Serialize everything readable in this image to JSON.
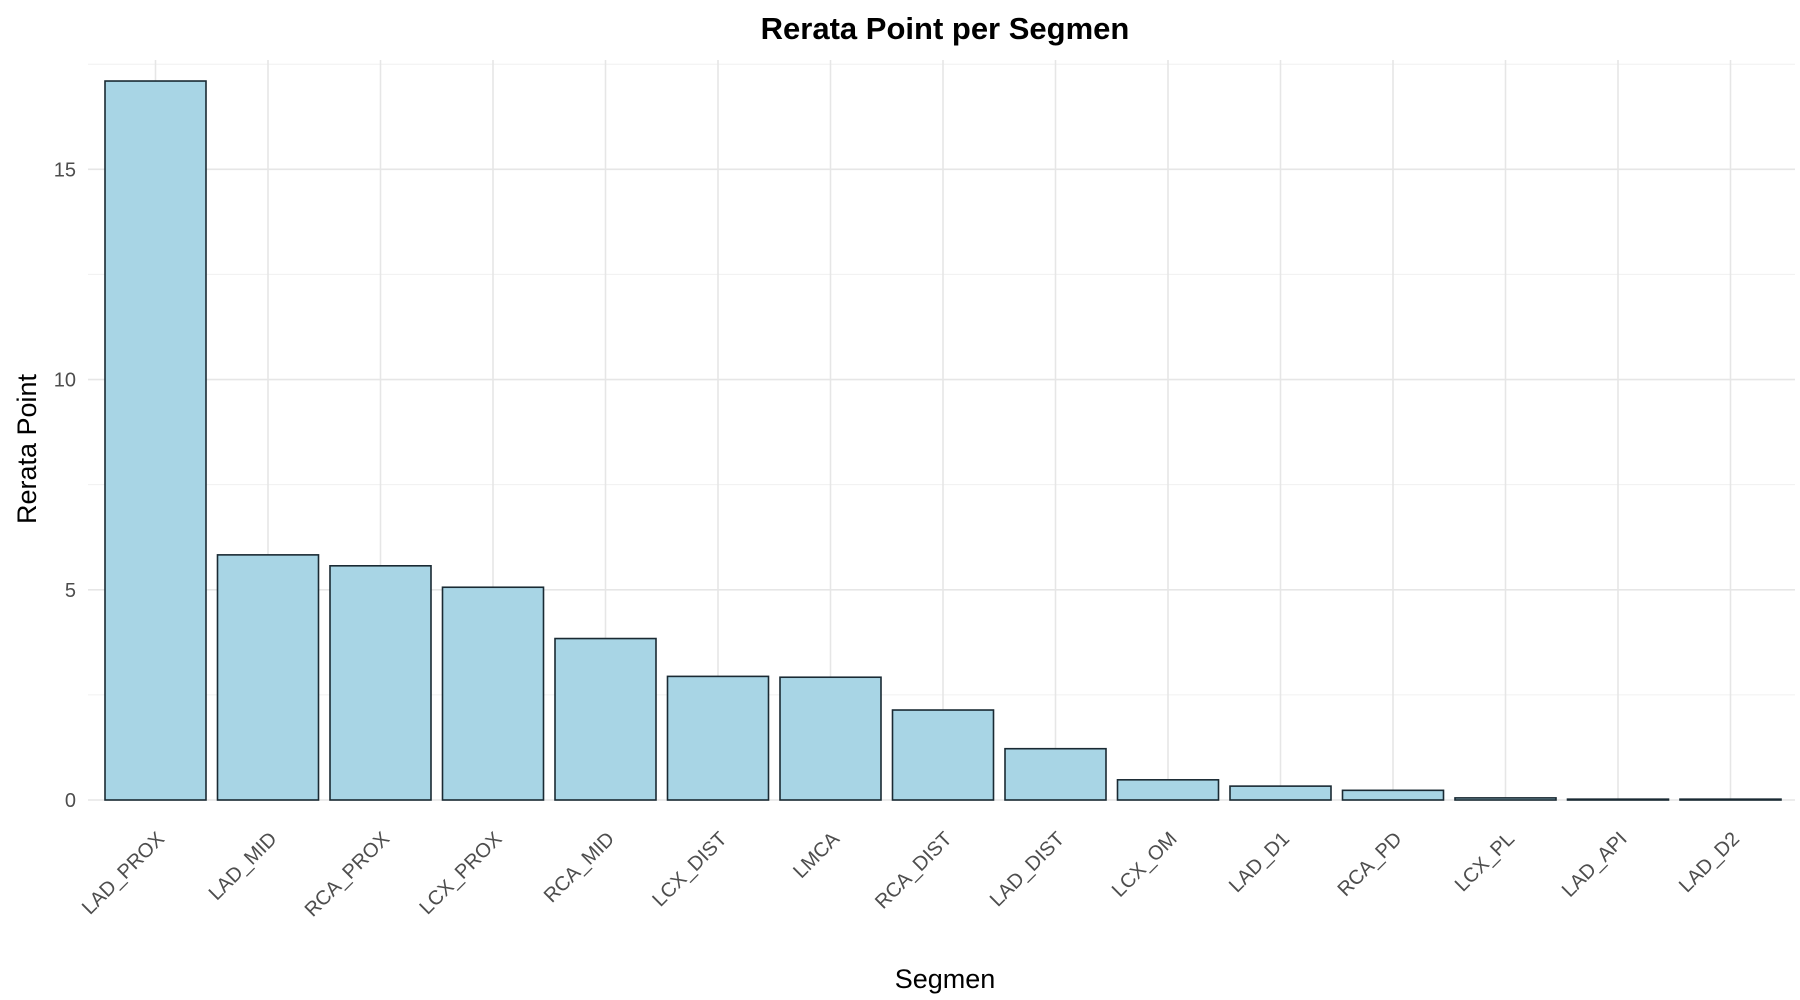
{
  "chart_data": {
    "type": "bar",
    "title": "Rerata Point per Segmen",
    "xlabel": "Segmen",
    "ylabel": "Rerata Point",
    "categories": [
      "LAD_PROX",
      "LAD_MID",
      "RCA_PROX",
      "LCX_PROX",
      "RCA_MID",
      "LCX_DIST",
      "LMCA",
      "RCA_DIST",
      "LAD_DIST",
      "LCX_OM",
      "LAD_D1",
      "RCA_PD",
      "LCX_PL",
      "LAD_API",
      "LAD_D2"
    ],
    "values": [
      17.1,
      5.83,
      5.57,
      5.06,
      3.84,
      2.94,
      2.92,
      2.14,
      1.22,
      0.48,
      0.33,
      0.23,
      0.05,
      0.02,
      0.02
    ],
    "yticks": [
      0,
      5,
      10,
      15
    ],
    "ylim": [
      0,
      17.6
    ],
    "grid": true,
    "legend": "none",
    "bar_fill": "#a8d5e5",
    "bar_stroke": "#1a2a33"
  }
}
